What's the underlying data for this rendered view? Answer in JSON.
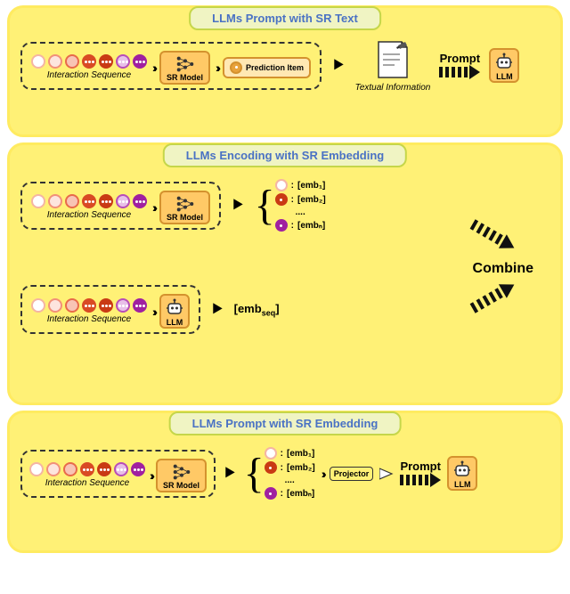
{
  "panels": {
    "p1": {
      "title": "LLMs Prompt with SR Text",
      "bg": "#fff176",
      "border": "#ffeb60"
    },
    "p2": {
      "title": "LLMs Encoding with SR Embedding",
      "bg": "#fff176",
      "border": "#ffeb60"
    },
    "p3": {
      "title": "LLMs Prompt with SR Embedding",
      "bg": "#fff176",
      "border": "#ffeb60"
    }
  },
  "title_box": {
    "bg": "#f0f4c3",
    "border": "#c5d64a",
    "color": "#4a72c4"
  },
  "sequence": {
    "label": "Interaction Sequence",
    "nodes": [
      {
        "border": "#f5b5a3",
        "fill": "#ffffff"
      },
      {
        "border": "#f29079",
        "fill": "#fde5de"
      },
      {
        "border": "#e86a4a",
        "fill": "#f8c4b5"
      },
      {
        "border": "#d94a24",
        "fill": "#d94a24"
      },
      {
        "border": "#c93a14",
        "fill": "#c93a14"
      },
      {
        "border": "#b84db8",
        "fill": "#e8c0e8"
      },
      {
        "border": "#a020a0",
        "fill": "#a020a0"
      }
    ],
    "dot_color": "#ffffff"
  },
  "sr_model": {
    "label": "SR Model",
    "bg": "#ffc966",
    "border": "#d4922e"
  },
  "prediction": {
    "label": "Prediction Item",
    "bg": "#ffe8b3",
    "border": "#d4922e"
  },
  "textual_info": {
    "label": "Textual Information"
  },
  "prompt": {
    "label": "Prompt"
  },
  "llm": {
    "label": "LLM",
    "bg": "#ffc966",
    "border": "#d4922e"
  },
  "emb": {
    "e1": "[emb₁]",
    "e2": "[emb₂]",
    "dots": "....",
    "en": "[embₙ]",
    "seq": "emb",
    "seq_sub": "seq"
  },
  "combine": "Combine",
  "projector": "Projector",
  "colors": {
    "chevron": "#333333",
    "arrow": "#111111",
    "dashed": "#2a2a2a"
  }
}
